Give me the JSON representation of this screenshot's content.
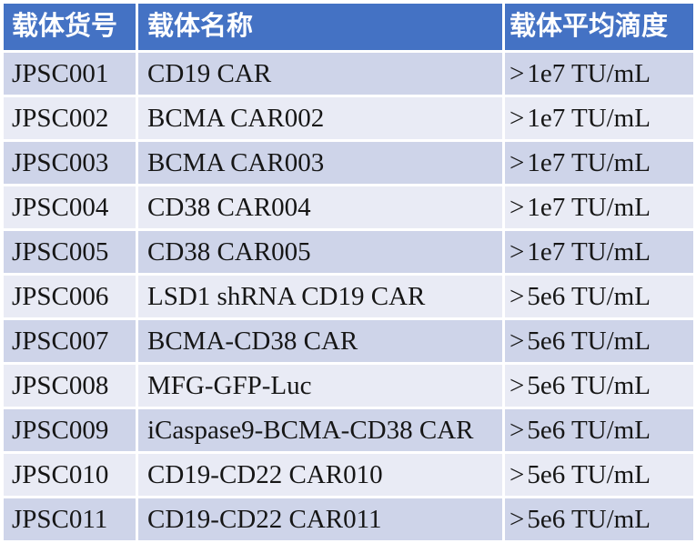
{
  "colors": {
    "header_bg": "#4472C4",
    "header_text": "#FFFFFF",
    "row_odd_bg": "#CED4E9",
    "row_even_bg": "#E9EBF5",
    "body_text": "#161616",
    "gutter": "#FFFFFF"
  },
  "table": {
    "columns": [
      {
        "label": "载体货号"
      },
      {
        "label": "载体名称"
      },
      {
        "label": "载体平均滴度"
      }
    ],
    "rows": [
      {
        "id": "JPSC001",
        "name": "CD19 CAR",
        "titer": ">1e7 TU/mL"
      },
      {
        "id": "JPSC002",
        "name": "BCMA CAR002",
        "titer": ">1e7 TU/mL"
      },
      {
        "id": "JPSC003",
        "name": "BCMA CAR003",
        "titer": ">1e7 TU/mL"
      },
      {
        "id": "JPSC004",
        "name": "CD38 CAR004",
        "titer": ">1e7 TU/mL"
      },
      {
        "id": "JPSC005",
        "name": "CD38 CAR005",
        "titer": ">1e7 TU/mL"
      },
      {
        "id": "JPSC006",
        "name": "LSD1 shRNA CD19 CAR",
        "titer": ">5e6 TU/mL"
      },
      {
        "id": "JPSC007",
        "name": "BCMA-CD38 CAR",
        "titer": ">5e6 TU/mL"
      },
      {
        "id": "JPSC008",
        "name": "MFG-GFP-Luc",
        "titer": ">5e6 TU/mL"
      },
      {
        "id": "JPSC009",
        "name": "iCaspase9-BCMA-CD38 CAR",
        "titer": ">5e6 TU/mL"
      },
      {
        "id": "JPSC010",
        "name": "CD19-CD22 CAR010",
        "titer": ">5e6 TU/mL"
      },
      {
        "id": "JPSC011",
        "name": "CD19-CD22 CAR011",
        "titer": ">5e6 TU/mL"
      }
    ]
  },
  "chart_data": {
    "type": "table",
    "columns": [
      "载体货号",
      "载体名称",
      "载体平均滴度"
    ],
    "rows": [
      [
        "JPSC001",
        "CD19 CAR",
        ">1e7 TU/mL"
      ],
      [
        "JPSC002",
        "BCMA CAR002",
        ">1e7 TU/mL"
      ],
      [
        "JPSC003",
        "BCMA CAR003",
        ">1e7 TU/mL"
      ],
      [
        "JPSC004",
        "CD38 CAR004",
        ">1e7 TU/mL"
      ],
      [
        "JPSC005",
        "CD38 CAR005",
        ">1e7 TU/mL"
      ],
      [
        "JPSC006",
        "LSD1 shRNA CD19 CAR",
        ">5e6 TU/mL"
      ],
      [
        "JPSC007",
        "BCMA-CD38 CAR",
        ">5e6 TU/mL"
      ],
      [
        "JPSC008",
        "MFG-GFP-Luc",
        ">5e6 TU/mL"
      ],
      [
        "JPSC009",
        "iCaspase9-BCMA-CD38 CAR",
        ">5e6 TU/mL"
      ],
      [
        "JPSC010",
        "CD19-CD22 CAR010",
        ">5e6 TU/mL"
      ],
      [
        "JPSC011",
        "CD19-CD22 CAR011",
        ">5e6 TU/mL"
      ]
    ]
  }
}
